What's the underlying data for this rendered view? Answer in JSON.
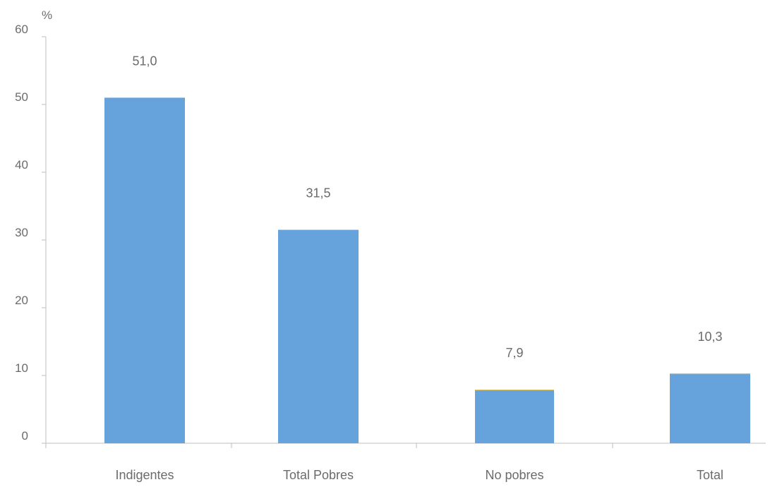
{
  "chart_data": {
    "type": "bar",
    "title": "",
    "xlabel": "",
    "ylabel": "%",
    "ylim": [
      0,
      60
    ],
    "yticks": [
      0,
      10,
      20,
      30,
      40,
      50,
      60
    ],
    "grid": false,
    "categories": [
      "Indigentes",
      "Total Pobres",
      "No pobres",
      "Total"
    ],
    "values": [
      51.0,
      31.5,
      7.9,
      10.3
    ],
    "data_labels": [
      "51,0",
      "31,5",
      "7,9",
      "10,3"
    ],
    "colors": {
      "bar": "#66a3dd",
      "bar_top_edge": "#e8c24a",
      "axis": "#bfbfbf",
      "text": "#6b6b6b"
    }
  }
}
